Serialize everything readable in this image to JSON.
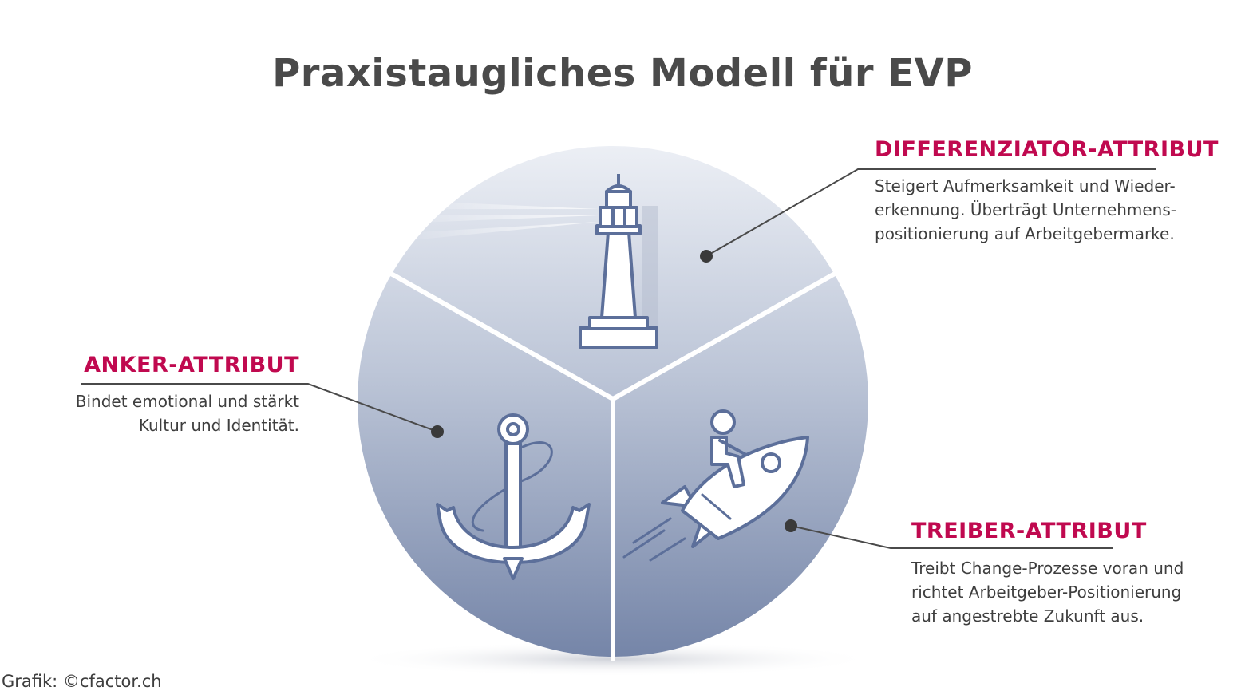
{
  "title": "Praxistaugliches Modell für EVP",
  "segments": {
    "differenziator": {
      "heading": "DIFFERENZIATOR-ATTRIBUT",
      "lines": [
        "Steigert Aufmerksamkeit und Wieder-",
        "erkennung. Überträgt Unternehmens-",
        "positionierung auf Arbeitgebermarke."
      ],
      "icon": "lighthouse-icon"
    },
    "anker": {
      "heading": "ANKER-ATTRIBUT",
      "lines": [
        "Bindet emotional und stärkt",
        "Kultur und Identität."
      ],
      "icon": "anchor-icon"
    },
    "treiber": {
      "heading": "TREIBER-ATTRIBUT",
      "lines": [
        "Treibt Change-Prozesse voran und",
        "richtet Arbeitgeber-Positionierung",
        "auf angestrebte Zukunft aus."
      ],
      "icon": "rocket-rider-icon"
    }
  },
  "credit": "Grafik: ©cfactor.ch",
  "colors": {
    "heading": "#c0094f",
    "title": "#4a4a4a",
    "text": "#3e3e3e",
    "icon_stroke": "#5c6f9a",
    "circle_top": "#eceff5",
    "circle_bottom": "#7585a8"
  }
}
